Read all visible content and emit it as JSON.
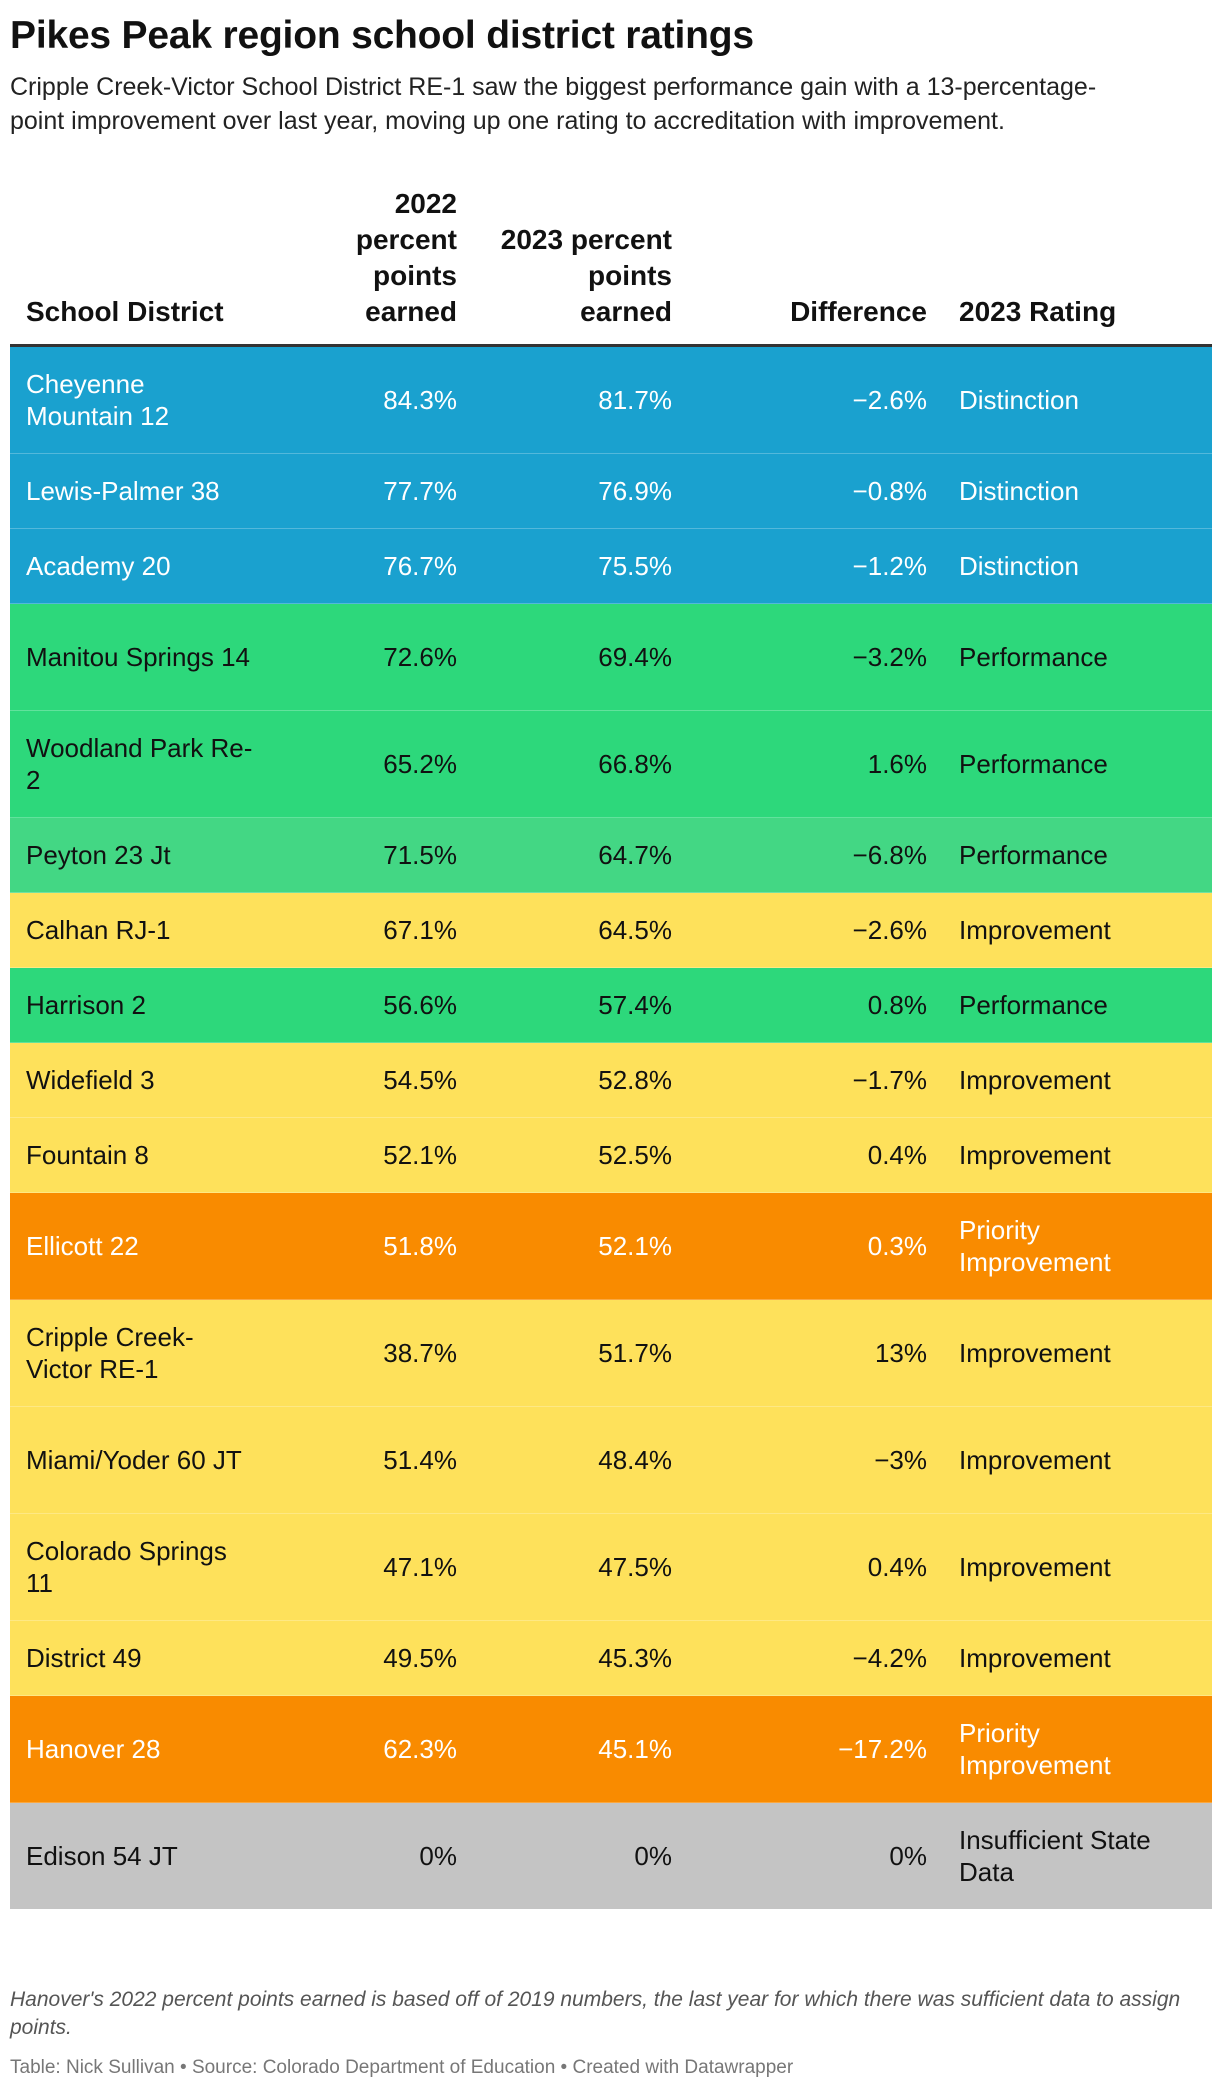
{
  "title": "Pikes Peak region school district ratings",
  "subtitle": "Cripple Creek-Victor School District RE-1 saw the biggest performance gain with a 13-percentage-point improvement over last year, moving up one rating to accreditation with improvement.",
  "table": {
    "headers": {
      "district": "School District",
      "p2022": "2022 percent points earned",
      "p2023": "2023 percent points earned",
      "difference": "Difference",
      "rating": "2023 Rating"
    },
    "colors": {
      "distinction": "#1aa1cf",
      "performance": "#2dd87b",
      "performance_light": "#43d784",
      "improvement": "#fee15b",
      "priority": "#f98b00",
      "insufficient": "#c4c4c4"
    },
    "rows": [
      {
        "district": "Cheyenne Mountain 12",
        "p2022": "84.3%",
        "p2023": "81.7%",
        "diff": "−2.6%",
        "rating": "Distinction",
        "color": "#1aa1cf",
        "text": "#ffffff"
      },
      {
        "district": "Lewis-Palmer 38",
        "p2022": "77.7%",
        "p2023": "76.9%",
        "diff": "−0.8%",
        "rating": "Distinction",
        "color": "#1aa1cf",
        "text": "#ffffff"
      },
      {
        "district": "Academy 20",
        "p2022": "76.7%",
        "p2023": "75.5%",
        "diff": "−1.2%",
        "rating": "Distinction",
        "color": "#1aa1cf",
        "text": "#ffffff"
      },
      {
        "district": "Manitou Springs 14",
        "p2022": "72.6%",
        "p2023": "69.4%",
        "diff": "−3.2%",
        "rating": "Performance",
        "color": "#2dd87b",
        "text": "#111111"
      },
      {
        "district": "Woodland Park Re-2",
        "p2022": "65.2%",
        "p2023": "66.8%",
        "diff": "1.6%",
        "rating": "Performance",
        "color": "#2dd87b",
        "text": "#111111"
      },
      {
        "district": "Peyton 23 Jt",
        "p2022": "71.5%",
        "p2023": "64.7%",
        "diff": "−6.8%",
        "rating": "Performance",
        "color": "#43d784",
        "text": "#111111"
      },
      {
        "district": "Calhan RJ-1",
        "p2022": "67.1%",
        "p2023": "64.5%",
        "diff": "−2.6%",
        "rating": "Improvement",
        "color": "#fee15b",
        "text": "#111111"
      },
      {
        "district": "Harrison 2",
        "p2022": "56.6%",
        "p2023": "57.4%",
        "diff": "0.8%",
        "rating": "Performance",
        "color": "#2dd87b",
        "text": "#111111"
      },
      {
        "district": "Widefield 3",
        "p2022": "54.5%",
        "p2023": "52.8%",
        "diff": "−1.7%",
        "rating": "Improvement",
        "color": "#fee15b",
        "text": "#111111"
      },
      {
        "district": "Fountain 8",
        "p2022": "52.1%",
        "p2023": "52.5%",
        "diff": "0.4%",
        "rating": "Improvement",
        "color": "#fee15b",
        "text": "#111111"
      },
      {
        "district": "Ellicott 22",
        "p2022": "51.8%",
        "p2023": "52.1%",
        "diff": "0.3%",
        "rating": "Priority Improvement",
        "color": "#f98b00",
        "text": "#ffffff"
      },
      {
        "district": "Cripple Creek-Victor RE-1",
        "p2022": "38.7%",
        "p2023": "51.7%",
        "diff": "13%",
        "rating": "Improvement",
        "color": "#fee15b",
        "text": "#111111"
      },
      {
        "district": "Miami/Yoder 60 JT",
        "p2022": "51.4%",
        "p2023": "48.4%",
        "diff": "−3%",
        "rating": "Improvement",
        "color": "#fee15b",
        "text": "#111111"
      },
      {
        "district": "Colorado Springs 11",
        "p2022": "47.1%",
        "p2023": "47.5%",
        "diff": "0.4%",
        "rating": "Improvement",
        "color": "#fee15b",
        "text": "#111111"
      },
      {
        "district": "District 49",
        "p2022": "49.5%",
        "p2023": "45.3%",
        "diff": "−4.2%",
        "rating": "Improvement",
        "color": "#fee15b",
        "text": "#111111"
      },
      {
        "district": "Hanover 28",
        "p2022": "62.3%",
        "p2023": "45.1%",
        "diff": "−17.2%",
        "rating": "Priority Improvement",
        "color": "#f98b00",
        "text": "#ffffff"
      },
      {
        "district": "Edison 54 JT",
        "p2022": "0%",
        "p2023": "0%",
        "diff": "0%",
        "rating": "Insufficient State Data",
        "color": "#c4c4c4",
        "text": "#111111"
      }
    ]
  },
  "notes": "Hanover's 2022 percent points earned is based off of 2019 numbers, the last year for which there was sufficient data to assign points.",
  "credit": "Table: Nick Sullivan • Source: Colorado Department of Education • Created with Datawrapper"
}
